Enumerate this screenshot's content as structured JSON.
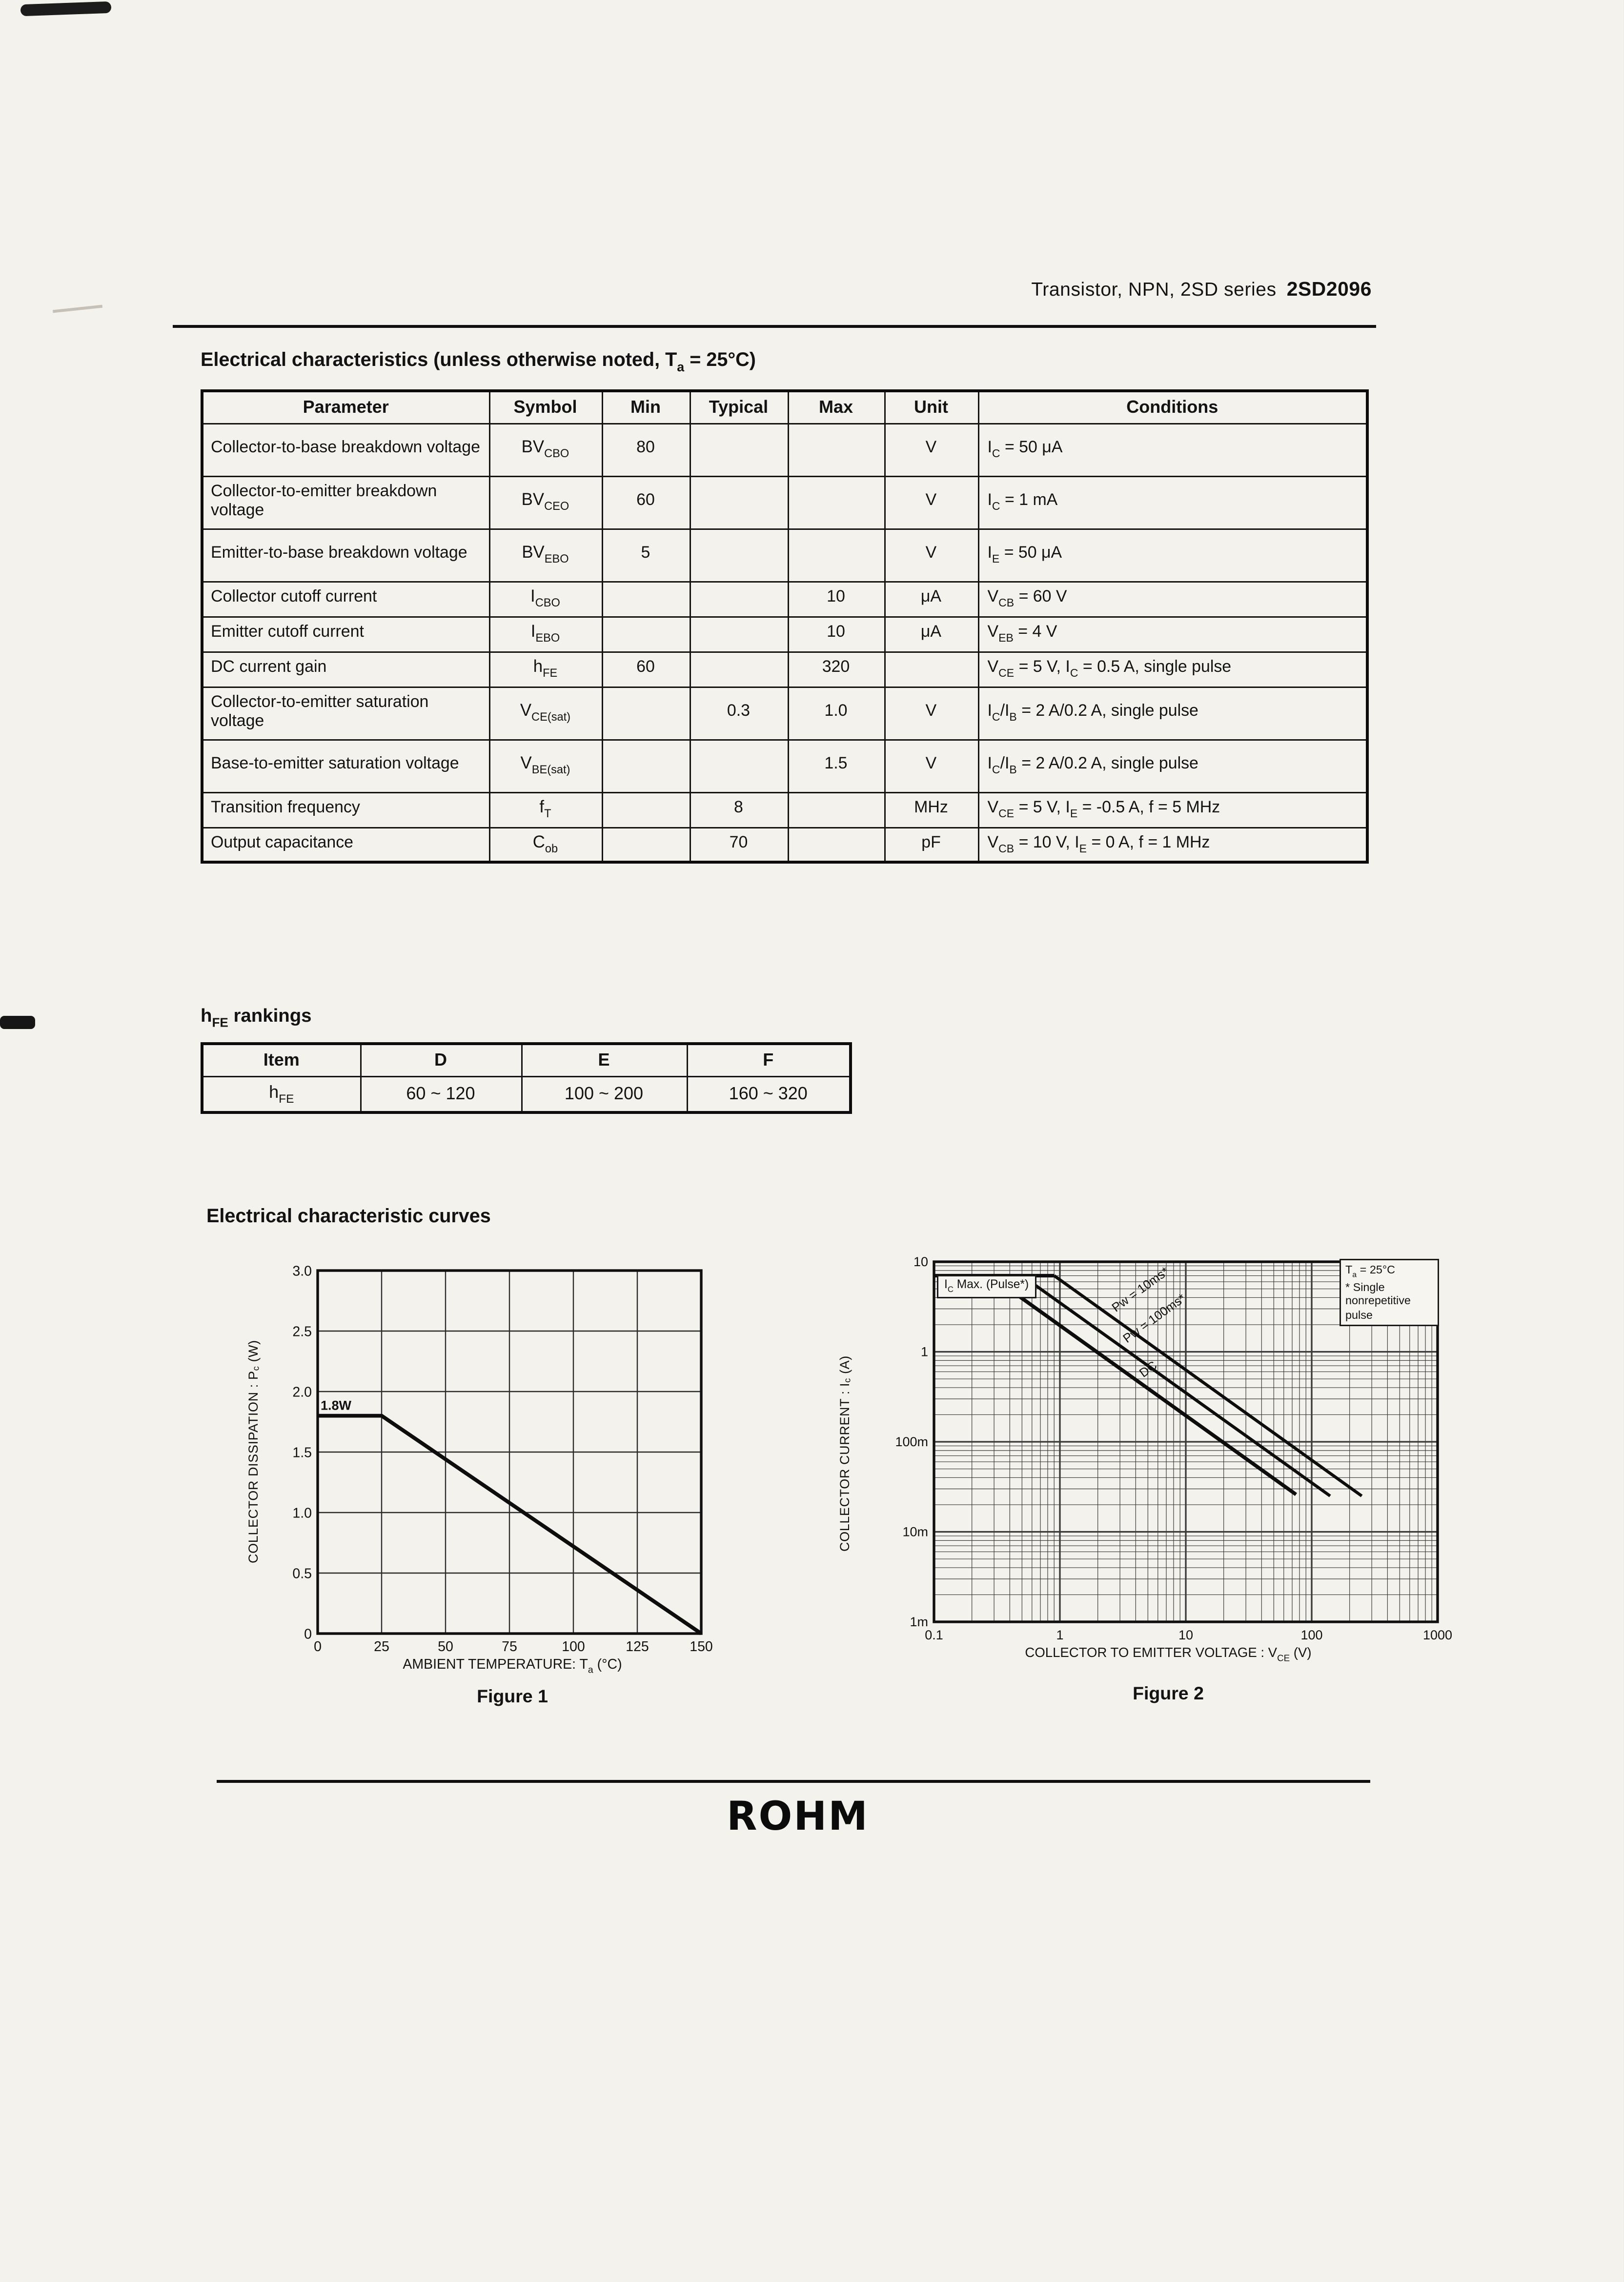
{
  "page": {
    "header": {
      "series_text": "Transistor, NPN, 2SD series",
      "part_number": "2SD2096"
    },
    "section1_title": "Electrical characteristics (unless otherwise noted, T{a} = 25°C)",
    "hfe_title": "h{FE} rankings",
    "curves_title": "Electrical characteristic curves",
    "logo_text": "ROHM"
  },
  "electrical_table": {
    "columns": [
      "Parameter",
      "Symbol",
      "Min",
      "Typical",
      "Max",
      "Unit",
      "Conditions"
    ],
    "rows": [
      {
        "parameter": "Collector-to-base breakdown voltage",
        "symbol": "BV{CBO}",
        "min": "80",
        "typical": "",
        "max": "",
        "unit": "V",
        "conditions": "I{C} = 50 μA"
      },
      {
        "parameter": "Collector-to-emitter breakdown voltage",
        "symbol": "BV{CEO}",
        "min": "60",
        "typical": "",
        "max": "",
        "unit": "V",
        "conditions": "I{C} = 1 mA"
      },
      {
        "parameter": "Emitter-to-base breakdown voltage",
        "symbol": "BV{EBO}",
        "min": "5",
        "typical": "",
        "max": "",
        "unit": "V",
        "conditions": "I{E} = 50 μA"
      },
      {
        "parameter": "Collector cutoff current",
        "symbol": "I{CBO}",
        "min": "",
        "typical": "",
        "max": "10",
        "unit": "μA",
        "conditions": "V{CB} = 60 V"
      },
      {
        "parameter": "Emitter cutoff current",
        "symbol": "I{EBO}",
        "min": "",
        "typical": "",
        "max": "10",
        "unit": "μA",
        "conditions": "V{EB} = 4 V"
      },
      {
        "parameter": "DC current gain",
        "symbol": "h{FE}",
        "min": "60",
        "typical": "",
        "max": "320",
        "unit": "",
        "conditions": "V{CE} = 5 V, I{C} = 0.5 A, single pulse"
      },
      {
        "parameter": "Collector-to-emitter saturation voltage",
        "symbol": "V{CE(sat)}",
        "min": "",
        "typical": "0.3",
        "max": "1.0",
        "unit": "V",
        "conditions": "I{C}/I{B} = 2 A/0.2 A, single pulse"
      },
      {
        "parameter": "Base-to-emitter saturation voltage",
        "symbol": "V{BE(sat)}",
        "min": "",
        "typical": "",
        "max": "1.5",
        "unit": "V",
        "conditions": "I{C}/I{B} = 2 A/0.2 A, single pulse"
      },
      {
        "parameter": "Transition frequency",
        "symbol": "f{T}",
        "min": "",
        "typical": "8",
        "max": "",
        "unit": "MHz",
        "conditions": "V{CE} = 5 V, I{E} = -0.5 A, f = 5 MHz"
      },
      {
        "parameter": "Output capacitance",
        "symbol": "C{ob}",
        "min": "",
        "typical": "70",
        "max": "",
        "unit": "pF",
        "conditions": "V{CB} = 10 V, I{E} = 0 A, f = 1 MHz"
      }
    ]
  },
  "hfe_table": {
    "columns": [
      "Item",
      "D",
      "E",
      "F"
    ],
    "rows": [
      [
        "h{FE}",
        "60 ~ 120",
        "100 ~ 200",
        "160 ~ 320"
      ]
    ]
  },
  "chart_data": [
    {
      "id": "figure1",
      "type": "line",
      "caption": "Figure 1",
      "xlabel": "AMBIENT TEMPERATURE: T{a} (°C)",
      "ylabel": "COLLECTOR DISSIPATION : P{c} (W)",
      "xlim": [
        0,
        150
      ],
      "ylim": [
        0,
        3
      ],
      "xticks": [
        0,
        25,
        50,
        75,
        100,
        125,
        150
      ],
      "xtick_labels": [
        "0",
        "25",
        "50",
        "75",
        "100",
        "125",
        "150"
      ],
      "yticks": [
        0,
        0.5,
        1,
        1.5,
        2,
        2.5,
        3
      ],
      "ytick_labels": [
        "0",
        "0.5",
        "1.0",
        "1.5",
        "2.0",
        "2.5",
        "3.0"
      ],
      "grid": true,
      "annotation": "1.8W",
      "series": [
        {
          "name": "Pc max derating",
          "points": [
            [
              0,
              1.8
            ],
            [
              25,
              1.8
            ],
            [
              150,
              0
            ]
          ]
        }
      ]
    },
    {
      "id": "figure2",
      "type": "line",
      "caption": "Figure 2",
      "xlabel": "COLLECTOR TO EMITTER VOLTAGE : V{CE} (V)",
      "ylabel": "COLLECTOR CURRENT : I{c} (A)",
      "xscale": "log",
      "yscale": "log",
      "xlim": [
        0.1,
        1000
      ],
      "ylim": [
        0.001,
        10
      ],
      "xticks": [
        0.1,
        1,
        10,
        100,
        1000
      ],
      "xtick_labels": [
        "0.1",
        "1",
        "10",
        "100",
        "1000"
      ],
      "yticks": [
        0.001,
        0.01,
        0.1,
        1,
        10
      ],
      "ytick_labels": [
        "1m",
        "10m",
        "100m",
        "1",
        "10"
      ],
      "grid": true,
      "corner_note": [
        "T{a} = 25°C",
        "* Single nonrepetitive pulse"
      ],
      "curve_label_box": "I{C} Max. (Pulse*)",
      "series": [
        {
          "name": "Ic Max (Pulse*)",
          "label": "",
          "points": [
            [
              0.1,
              7
            ],
            [
              0.9,
              7
            ]
          ]
        },
        {
          "name": "Pw = 10ms*",
          "label": "Pw = 10ms*",
          "points": [
            [
              0.9,
              7
            ],
            [
              250,
              0.025
            ]
          ]
        },
        {
          "name": "Pw = 100ms*",
          "label": "Pw = 100ms*",
          "points": [
            [
              0.5,
              7
            ],
            [
              140,
              0.025
            ]
          ]
        },
        {
          "name": "DC",
          "label": "DC",
          "points": [
            [
              0.28,
              7
            ],
            [
              75,
              0.026
            ]
          ]
        }
      ]
    }
  ]
}
